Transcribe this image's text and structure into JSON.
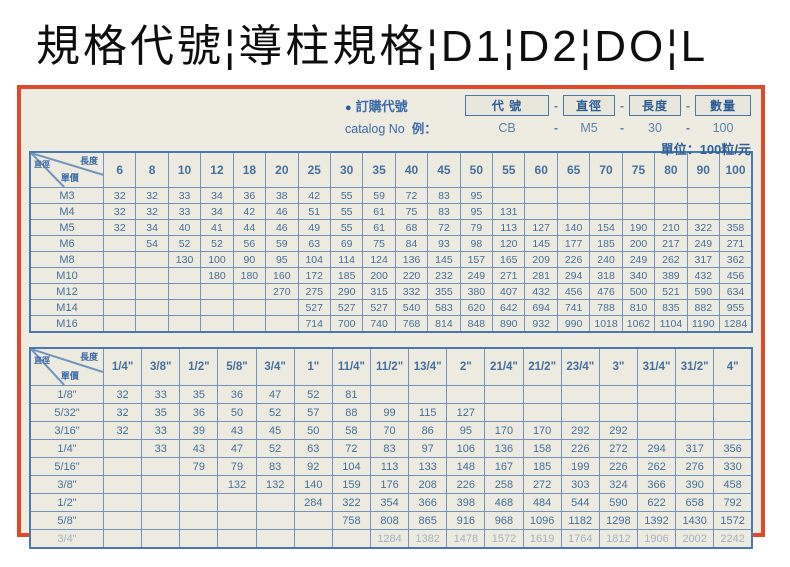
{
  "title": "規格代號¦導柱規格¦D1¦D2¦DO¦L",
  "order_header": {
    "bullet": "●",
    "label_zh": "訂購代號",
    "label_en": "catalog No",
    "example_label": "例：",
    "code_boxes": [
      "代  號",
      "直徑",
      "長度",
      "數量"
    ],
    "separator": "-",
    "example_values": [
      "CB",
      "M5",
      "30",
      "100"
    ],
    "unit_note": "單位：100粒/元"
  },
  "table_corner": {
    "top_label": "長度",
    "mid_label": "單價",
    "left_label": "直徑"
  },
  "chart_data": [
    {
      "type": "table",
      "title": "metric diameter x length unit-price table",
      "corner": {
        "columns_mean": "長度",
        "rows_mean": "直徑",
        "cells_mean": "單價"
      },
      "columns": [
        "6",
        "8",
        "10",
        "12",
        "18",
        "20",
        "25",
        "30",
        "35",
        "40",
        "45",
        "50",
        "55",
        "60",
        "65",
        "70",
        "75",
        "80",
        "90",
        "100"
      ],
      "rows": [
        {
          "label": "M3",
          "values": [
            "32",
            "32",
            "33",
            "34",
            "36",
            "38",
            "42",
            "55",
            "59",
            "72",
            "83",
            "95",
            "",
            "",
            "",
            "",
            "",
            "",
            "",
            ""
          ]
        },
        {
          "label": "M4",
          "values": [
            "32",
            "32",
            "33",
            "34",
            "42",
            "46",
            "51",
            "55",
            "61",
            "75",
            "83",
            "95",
            "131",
            "",
            "",
            "",
            "",
            "",
            "",
            ""
          ]
        },
        {
          "label": "M5",
          "values": [
            "32",
            "34",
            "40",
            "41",
            "44",
            "46",
            "49",
            "55",
            "61",
            "68",
            "72",
            "79",
            "113",
            "127",
            "140",
            "154",
            "190",
            "210",
            "322",
            "358"
          ]
        },
        {
          "label": "M6",
          "values": [
            "",
            "54",
            "52",
            "52",
            "56",
            "59",
            "63",
            "69",
            "75",
            "84",
            "93",
            "98",
            "120",
            "145",
            "177",
            "185",
            "200",
            "217",
            "249",
            "271"
          ]
        },
        {
          "label": "M8",
          "values": [
            "",
            "",
            "130",
            "100",
            "90",
            "95",
            "104",
            "114",
            "124",
            "136",
            "145",
            "157",
            "165",
            "209",
            "226",
            "240",
            "249",
            "262",
            "317",
            "362"
          ]
        },
        {
          "label": "M10",
          "values": [
            "",
            "",
            "",
            "180",
            "180",
            "160",
            "172",
            "185",
            "200",
            "220",
            "232",
            "249",
            "271",
            "281",
            "294",
            "318",
            "340",
            "389",
            "432",
            "456"
          ]
        },
        {
          "label": "M12",
          "values": [
            "",
            "",
            "",
            "",
            "",
            "270",
            "275",
            "290",
            "315",
            "332",
            "355",
            "380",
            "407",
            "432",
            "456",
            "476",
            "500",
            "521",
            "590",
            "634"
          ]
        },
        {
          "label": "M14",
          "values": [
            "",
            "",
            "",
            "",
            "",
            "",
            "527",
            "527",
            "527",
            "540",
            "583",
            "620",
            "642",
            "694",
            "741",
            "788",
            "810",
            "835",
            "882",
            "955"
          ]
        },
        {
          "label": "M16",
          "values": [
            "",
            "",
            "",
            "",
            "",
            "",
            "714",
            "700",
            "740",
            "768",
            "814",
            "848",
            "890",
            "932",
            "990",
            "1018",
            "1062",
            "1104",
            "1190",
            "1284"
          ]
        }
      ]
    },
    {
      "type": "table",
      "title": "imperial diameter x length unit-price table",
      "corner": {
        "columns_mean": "長度",
        "rows_mean": "直徑",
        "cells_mean": "單價"
      },
      "columns": [
        "1/4\"",
        "3/8\"",
        "1/2\"",
        "5/8\"",
        "3/4\"",
        "1\"",
        "11/4\"",
        "11/2\"",
        "13/4\"",
        "2\"",
        "21/4\"",
        "21/2\"",
        "23/4\"",
        "3\"",
        "31/4\"",
        "31/2\"",
        "4\""
      ],
      "rows": [
        {
          "label": "1/8\"",
          "values": [
            "32",
            "33",
            "35",
            "36",
            "47",
            "52",
            "81",
            "",
            "",
            "",
            "",
            "",
            "",
            "",
            "",
            "",
            ""
          ]
        },
        {
          "label": "5/32\"",
          "values": [
            "32",
            "35",
            "36",
            "50",
            "52",
            "57",
            "88",
            "99",
            "115",
            "127",
            "",
            "",
            "",
            "",
            "",
            "",
            ""
          ]
        },
        {
          "label": "3/16\"",
          "values": [
            "32",
            "33",
            "39",
            "43",
            "45",
            "50",
            "58",
            "70",
            "86",
            "95",
            "170",
            "170",
            "292",
            "292",
            "",
            "",
            ""
          ]
        },
        {
          "label": "1/4\"",
          "values": [
            "",
            "33",
            "43",
            "47",
            "52",
            "63",
            "72",
            "83",
            "97",
            "106",
            "136",
            "158",
            "226",
            "272",
            "294",
            "317",
            "356"
          ]
        },
        {
          "label": "5/16\"",
          "values": [
            "",
            "",
            "79",
            "79",
            "83",
            "92",
            "104",
            "113",
            "133",
            "148",
            "167",
            "185",
            "199",
            "226",
            "262",
            "276",
            "330"
          ]
        },
        {
          "label": "3/8\"",
          "values": [
            "",
            "",
            "",
            "132",
            "132",
            "140",
            "159",
            "176",
            "208",
            "226",
            "258",
            "272",
            "303",
            "324",
            "366",
            "390",
            "458"
          ]
        },
        {
          "label": "1/2\"",
          "values": [
            "",
            "",
            "",
            "",
            "",
            "284",
            "322",
            "354",
            "366",
            "398",
            "468",
            "484",
            "544",
            "590",
            "622",
            "658",
            "792"
          ]
        },
        {
          "label": "5/8\"",
          "values": [
            "",
            "",
            "",
            "",
            "",
            "",
            "758",
            "808",
            "865",
            "916",
            "968",
            "1096",
            "1182",
            "1298",
            "1392",
            "1430",
            "1572"
          ]
        },
        {
          "label": "3/4\"",
          "values": [
            "",
            "",
            "",
            "",
            "",
            "",
            "",
            "1284",
            "1382",
            "1478",
            "1572",
            "1619",
            "1764",
            "1812",
            "1906",
            "2002",
            "2242"
          ]
        }
      ]
    }
  ],
  "colors": {
    "panel_border": "#e1492b",
    "paper": "#eeebe1",
    "grid_blue": "#7094bf",
    "text_blue": "#3c6ca8",
    "title_black": "#0e0e0e"
  }
}
